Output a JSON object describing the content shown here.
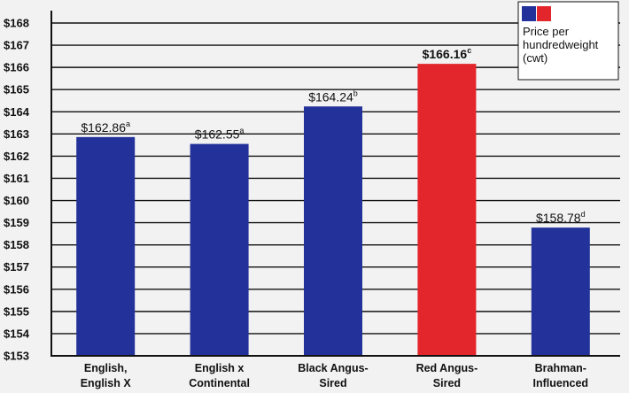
{
  "chart_data": {
    "type": "bar",
    "title": "",
    "xlabel": "",
    "ylabel": "",
    "ylim": [
      153,
      168
    ],
    "yticks": [
      153,
      154,
      155,
      156,
      157,
      158,
      159,
      160,
      161,
      162,
      163,
      164,
      165,
      166,
      167,
      168
    ],
    "ytick_prefix": "$",
    "grid": true,
    "categories": [
      [
        "English,",
        "English X"
      ],
      [
        "English x",
        "Continental"
      ],
      [
        "Black Angus-",
        "Sired"
      ],
      [
        "Red Angus-",
        "Sired"
      ],
      [
        "Brahman-",
        "Influenced"
      ]
    ],
    "values": [
      162.86,
      162.55,
      164.24,
      166.16,
      158.78
    ],
    "data_labels": [
      {
        "text": "$162.86",
        "sup": "a",
        "bold": false
      },
      {
        "text": "$162.55",
        "sup": "a",
        "bold": false
      },
      {
        "text": "$164.24",
        "sup": "b",
        "bold": false
      },
      {
        "text": "$166.16",
        "sup": "c",
        "bold": true
      },
      {
        "text": "$158.78",
        "sup": "d",
        "bold": false
      }
    ],
    "bar_colors": [
      "#23329a",
      "#23329a",
      "#23329a",
      "#e3262b",
      "#23329a"
    ],
    "legend": {
      "position": "top-right",
      "lines": [
        "Price per",
        "hundredweight",
        "(cwt)"
      ],
      "swatch_colors": [
        "#23329a",
        "#e3262b"
      ]
    }
  }
}
